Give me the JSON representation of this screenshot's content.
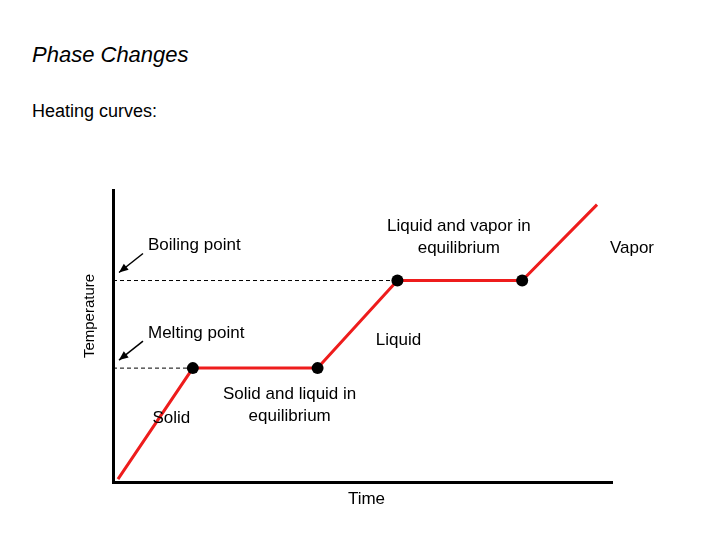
{
  "chart_data": {
    "type": "line",
    "title": "Phase Changes",
    "subtitle": "Heating curves:",
    "x_label": "Time",
    "y_label": "Temperature",
    "xlim": [
      0,
      100
    ],
    "ylim": [
      0,
      100
    ],
    "grid": false,
    "tick_labels": false,
    "series": [
      {
        "color": "#ee1c1c",
        "marker": "none",
        "line_style": "solid",
        "x": [
          1,
          16,
          41,
          57,
          82,
          97
        ],
        "values": [
          1,
          39,
          39,
          69,
          69,
          95
        ]
      },
      {
        "type": "scatter",
        "color": "#000000",
        "marker": "circle",
        "x": [
          16,
          41,
          57,
          82
        ],
        "values": [
          39,
          39,
          69,
          69
        ]
      }
    ],
    "reference_lines": [
      {
        "label": "Boiling point",
        "y": 69,
        "x_end": 57,
        "line_style": "dashed"
      },
      {
        "label": "Melting point",
        "y": 39,
        "x_end": 16,
        "line_style": "dashed"
      }
    ],
    "annotations": [
      {
        "text": "Liquid and vapor in\nequilibrium",
        "x": 69.3,
        "y": 83.7
      },
      {
        "text": "Vapor",
        "x": 104,
        "y": 80
      },
      {
        "text": "Liquid",
        "x": 57.2,
        "y": 48.6
      },
      {
        "text": "Solid and liquid in\nequilibrium",
        "x": 35.4,
        "y": 26.4
      },
      {
        "text": "Solid",
        "x": 11.7,
        "y": 21.9
      }
    ]
  }
}
